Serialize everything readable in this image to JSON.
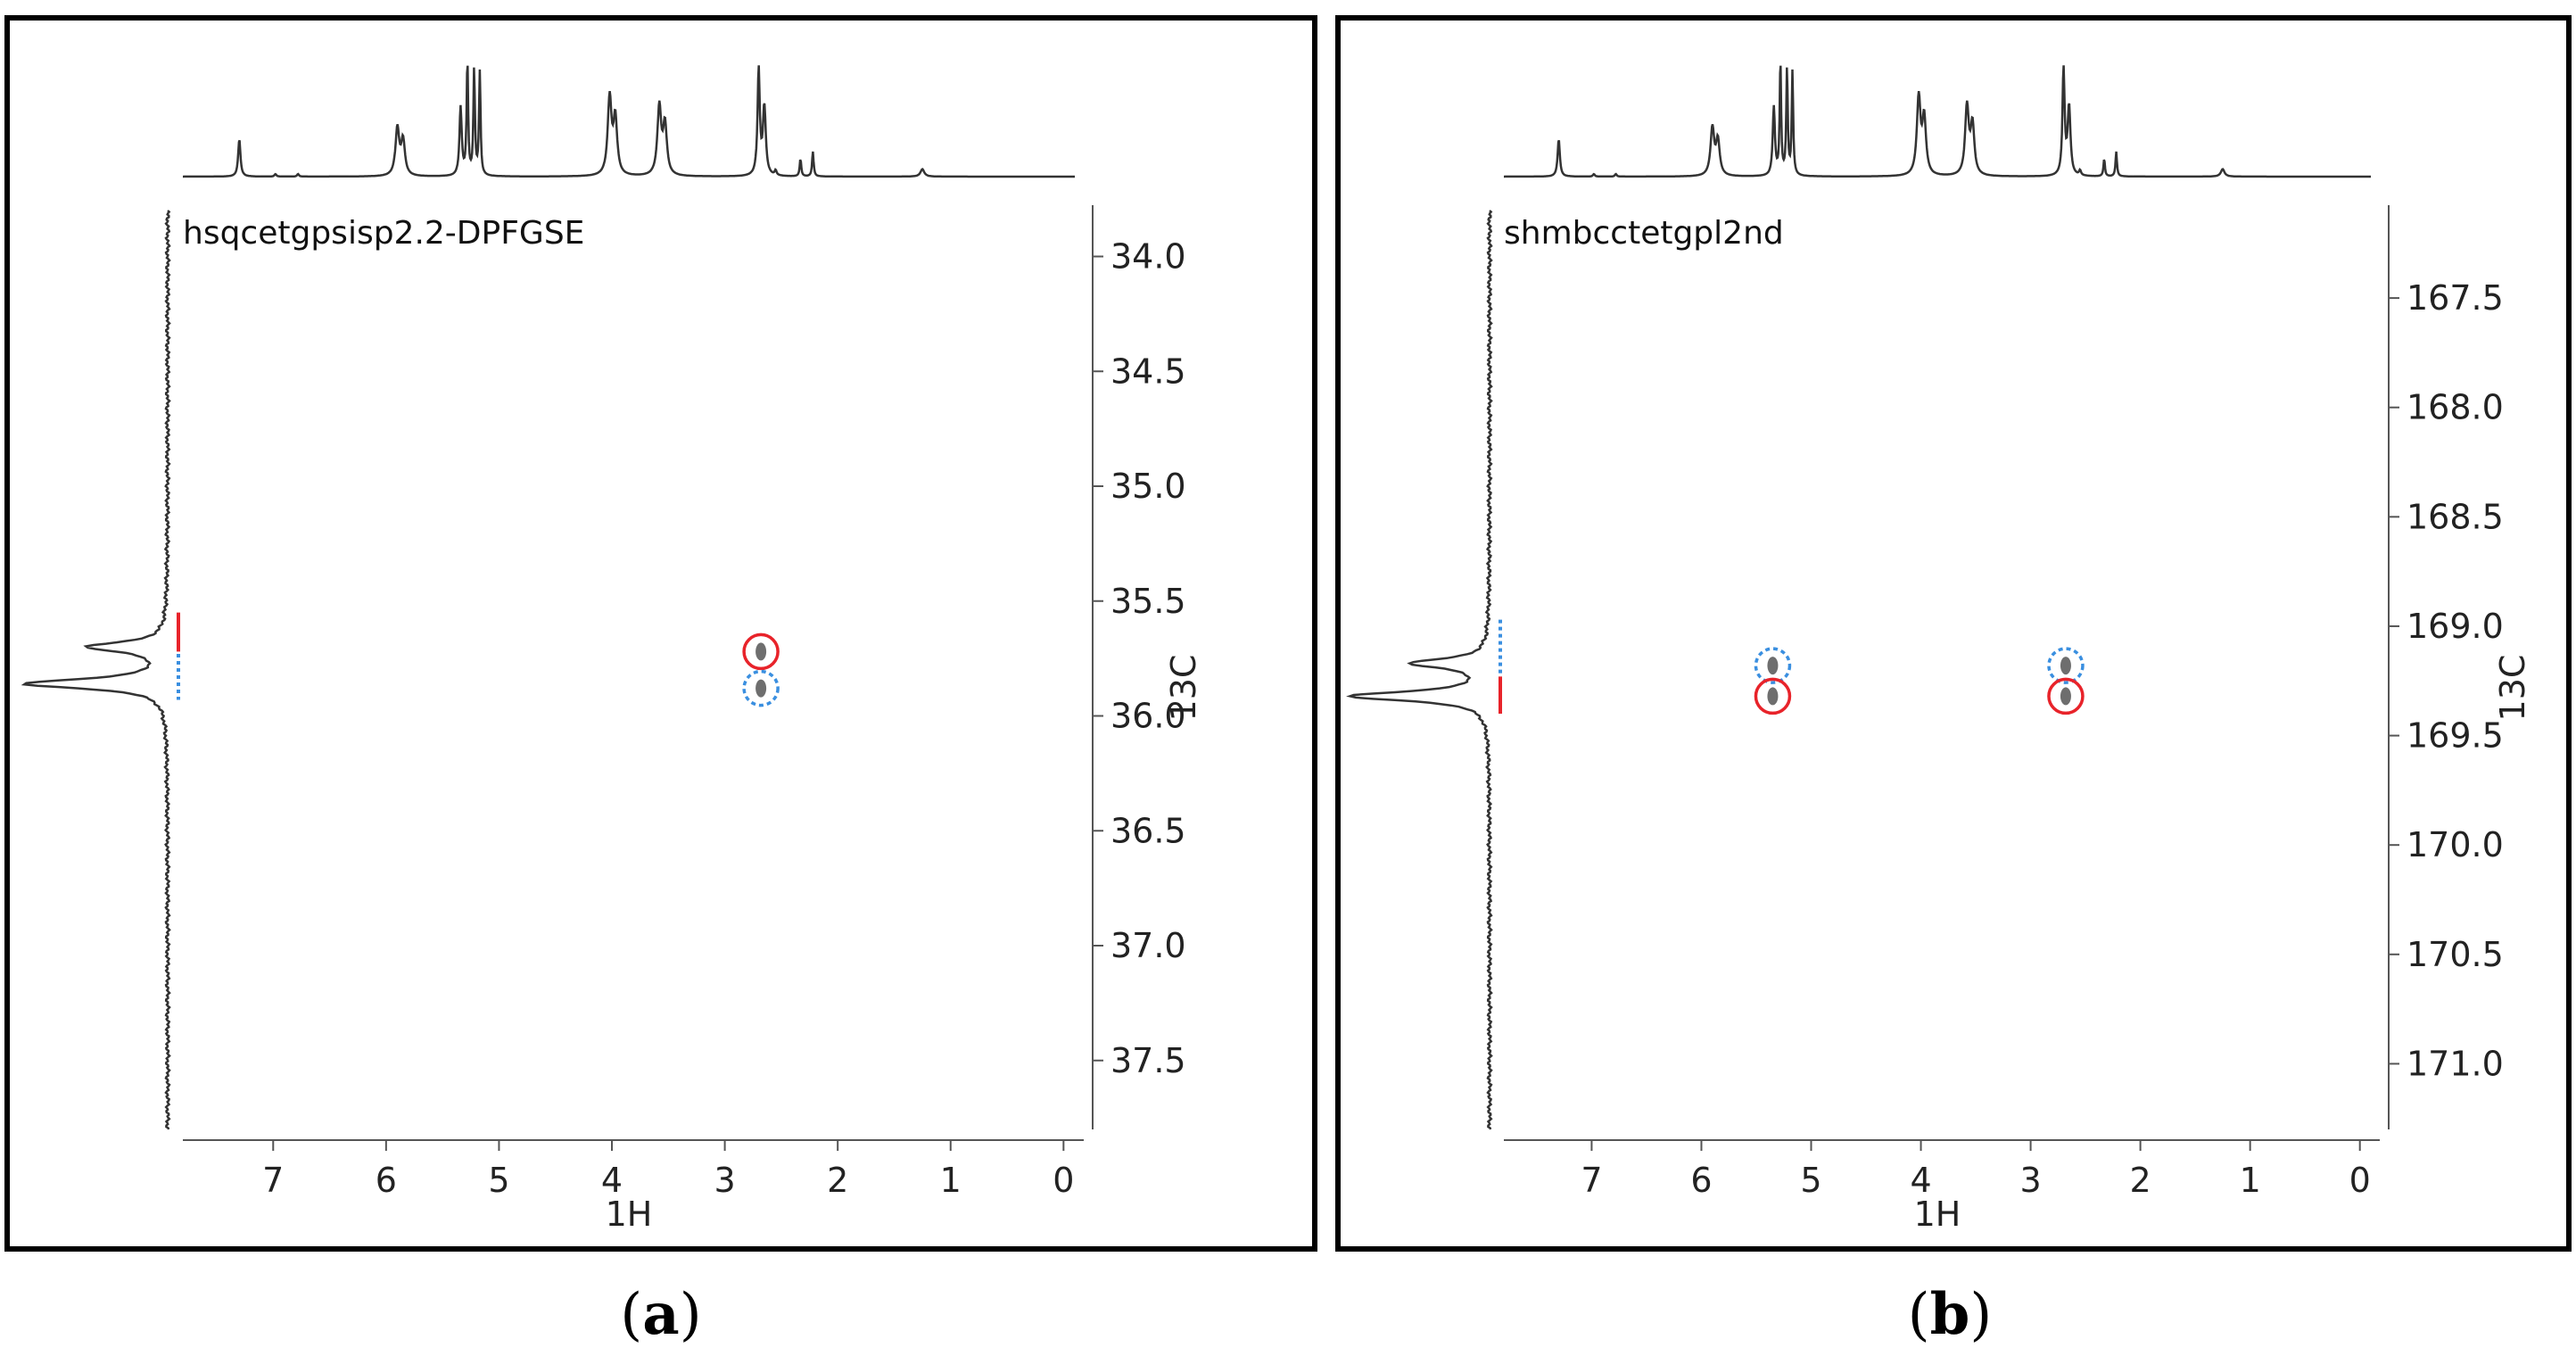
{
  "captions": {
    "a": {
      "open": "(",
      "letter": "a",
      "close": ")"
    },
    "b": {
      "open": "(",
      "letter": "b",
      "close": ")"
    }
  },
  "colors": {
    "frame": "#000000",
    "spectrum": "#333333",
    "axis": "#555555",
    "solid_marker": "#e8232a",
    "dashed_marker": "#3a8fe0",
    "cross_peak": "#555555"
  },
  "chart_data": [
    {
      "type": "scatter",
      "panel": "a",
      "experiment_label": "hsqcetgpsisp2.2-DPFGSE",
      "xlabel": "1H",
      "ylabel": "13C",
      "xlim": [
        7.8,
        -0.1
      ],
      "ylim": [
        33.8,
        37.8
      ],
      "x_ticks": [
        7,
        6,
        5,
        4,
        3,
        2,
        1,
        0
      ],
      "y_ticks": [
        "34.0",
        "34.5",
        "35.0",
        "35.5",
        "36.0",
        "36.5",
        "37.0",
        "37.5"
      ],
      "cross_peaks": [
        {
          "x": 2.68,
          "y": 35.72,
          "marker": "solid-circle"
        },
        {
          "x": 2.68,
          "y": 35.88,
          "marker": "dashed-circle"
        }
      ],
      "vertical_projection_peaks": [
        {
          "y": 35.7,
          "height": 0.55
        },
        {
          "y": 35.86,
          "height": 1.0
        }
      ],
      "projection_markers": [
        {
          "from": 35.55,
          "to": 35.72,
          "style": "solid"
        },
        {
          "from": 35.73,
          "to": 35.93,
          "style": "dashed"
        }
      ]
    },
    {
      "type": "scatter",
      "panel": "b",
      "experiment_label": "shmbcctetgpl2nd",
      "xlabel": "1H",
      "ylabel": "13C",
      "xlim": [
        7.8,
        -0.1
      ],
      "ylim": [
        167.1,
        171.3
      ],
      "x_ticks": [
        7,
        6,
        5,
        4,
        3,
        2,
        1,
        0
      ],
      "y_ticks": [
        "167.5",
        "168.0",
        "168.5",
        "169.0",
        "169.5",
        "170.0",
        "170.5",
        "171.0"
      ],
      "cross_peaks": [
        {
          "x": 5.35,
          "y": 169.18,
          "marker": "dashed-circle"
        },
        {
          "x": 5.35,
          "y": 169.32,
          "marker": "solid-circle"
        },
        {
          "x": 2.68,
          "y": 169.18,
          "marker": "dashed-circle"
        },
        {
          "x": 2.68,
          "y": 169.32,
          "marker": "solid-circle"
        }
      ],
      "vertical_projection_peaks": [
        {
          "y": 169.17,
          "height": 0.55
        },
        {
          "y": 169.32,
          "height": 1.0
        }
      ],
      "projection_markers": [
        {
          "from": 168.97,
          "to": 169.22,
          "style": "dashed"
        },
        {
          "from": 169.23,
          "to": 169.4,
          "style": "solid"
        }
      ]
    }
  ],
  "proton_spectrum": {
    "peaks": [
      {
        "ppm": 7.3,
        "h": 0.3,
        "w": 0.012
      },
      {
        "ppm": 6.98,
        "h": 0.02,
        "w": 0.01
      },
      {
        "ppm": 6.78,
        "h": 0.02,
        "w": 0.01
      },
      {
        "ppm": 5.9,
        "h": 0.38,
        "w": 0.02
      },
      {
        "ppm": 5.85,
        "h": 0.28,
        "w": 0.02
      },
      {
        "ppm": 5.34,
        "h": 0.55,
        "w": 0.012
      },
      {
        "ppm": 5.28,
        "h": 0.92,
        "w": 0.008
      },
      {
        "ppm": 5.22,
        "h": 0.85,
        "w": 0.008
      },
      {
        "ppm": 5.17,
        "h": 0.83,
        "w": 0.008
      },
      {
        "ppm": 4.02,
        "h": 0.62,
        "w": 0.02
      },
      {
        "ppm": 3.97,
        "h": 0.45,
        "w": 0.02
      },
      {
        "ppm": 3.58,
        "h": 0.55,
        "w": 0.02
      },
      {
        "ppm": 3.53,
        "h": 0.4,
        "w": 0.02
      },
      {
        "ppm": 2.7,
        "h": 0.85,
        "w": 0.012
      },
      {
        "ppm": 2.65,
        "h": 0.55,
        "w": 0.015
      },
      {
        "ppm": 2.55,
        "h": 0.04,
        "w": 0.01
      },
      {
        "ppm": 2.33,
        "h": 0.14,
        "w": 0.008
      },
      {
        "ppm": 2.22,
        "h": 0.2,
        "w": 0.008
      },
      {
        "ppm": 1.25,
        "h": 0.06,
        "w": 0.02
      }
    ]
  }
}
